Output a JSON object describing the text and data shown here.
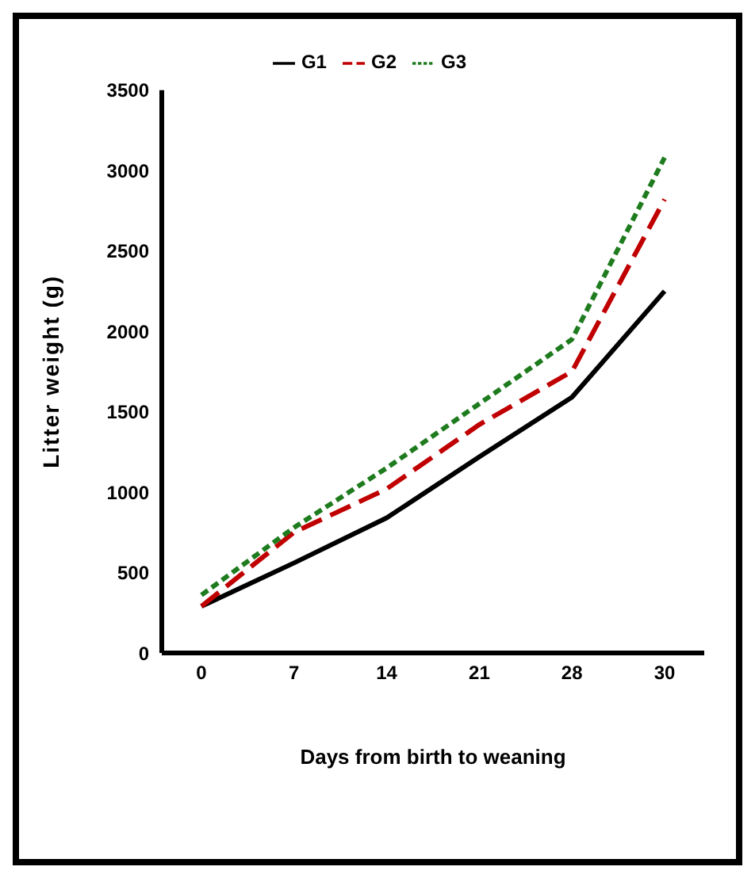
{
  "chart_data": {
    "type": "line",
    "xlabel": "Days from birth to weaning",
    "ylabel": "Litter weight (g)",
    "categories": [
      "0",
      "7",
      "14",
      "21",
      "28",
      "30"
    ],
    "series": [
      {
        "name": "G1",
        "color": "#000000",
        "line_style": "solid",
        "values": [
          290,
          560,
          840,
          1220,
          1590,
          2250
        ]
      },
      {
        "name": "G2",
        "color": "#c00000",
        "line_style": "dashed",
        "values": [
          290,
          750,
          1020,
          1420,
          1750,
          2820
        ]
      },
      {
        "name": "G3",
        "color": "#1e7b1e",
        "line_style": "dotted",
        "values": [
          360,
          780,
          1150,
          1550,
          1950,
          3080
        ]
      }
    ],
    "ylim": [
      0,
      3500
    ],
    "yticks": [
      0,
      500,
      1000,
      1500,
      2000,
      2500,
      3000,
      3500
    ],
    "grid": false,
    "legend": "top",
    "marker": "none"
  }
}
